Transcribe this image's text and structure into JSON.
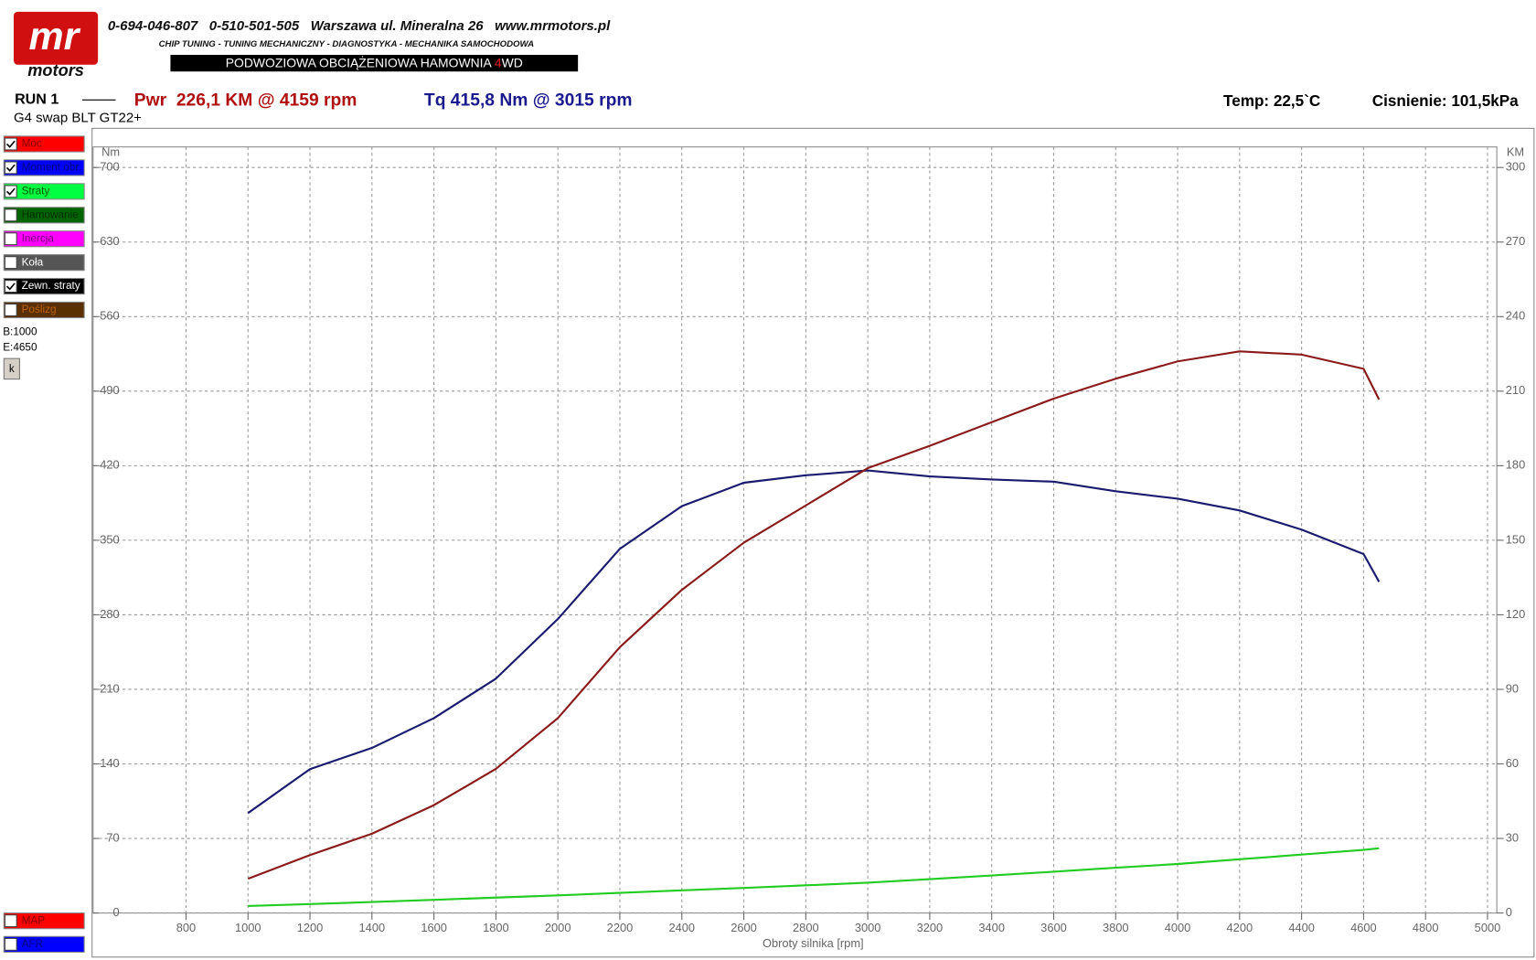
{
  "header": {
    "logo_top": "mr",
    "logo_bottom": "motors",
    "contact": "0-694-046-807   0-510-501-505   Warszawa ul. Mineralna 26   www.mrmotors.pl",
    "services": "CHIP TUNING - TUNING MECHANICZNY - DIAGNOSTYKA - MECHANIKA SAMOCHODOWA",
    "banner": [
      "PODWOZIOWA OBCIĄŻENIOWA HAMOWNIA ",
      "4",
      "WD"
    ]
  },
  "run": {
    "name": "RUN 1",
    "power": "Pwr  226,1 KM @ 4159 rpm",
    "torque": "Tq 415,8 Nm @ 3015 rpm",
    "temp": "Temp: 22,5`C",
    "pressure": "Cisnienie: 101,5kPa",
    "car": "G4 swap BLT GT22+"
  },
  "panel": {
    "items": [
      {
        "label": "Moc",
        "color": "#ff0000",
        "text_color": "#8b0000",
        "checked": true
      },
      {
        "label": "Moment obr.",
        "color": "#0000ff",
        "text_color": "#000080",
        "checked": true
      },
      {
        "label": "Straty",
        "color": "#00ff40",
        "text_color": "#006000",
        "checked": true
      },
      {
        "label": "Hamowanie",
        "color": "#006400",
        "text_color": "#003000",
        "checked": false
      },
      {
        "label": "Inercja",
        "color": "#ff00ff",
        "text_color": "#800080",
        "checked": false
      },
      {
        "label": "Koła",
        "color": "#555555",
        "text_color": "#ffffff",
        "checked": false
      },
      {
        "label": "Zewn. straty",
        "color": "#000000",
        "text_color": "#ffffff",
        "checked": true
      },
      {
        "label": "Poślizg",
        "color": "#5a3000",
        "text_color": "#c06000",
        "checked": false
      }
    ],
    "begin": "B:1000",
    "end": "E:4650",
    "button": "k",
    "bottom_items": [
      {
        "label": "MAP",
        "color": "#ff0000",
        "text_color": "#8b0000",
        "checked": false
      },
      {
        "label": "AFR",
        "color": "#0000ff",
        "text_color": "#000080",
        "checked": false
      }
    ]
  },
  "chart_data": {
    "type": "line",
    "y_label": "Nm",
    "y2_label": "KM",
    "x_label": "Obroty silnika [rpm]",
    "x": [
      1000,
      1200,
      1400,
      1600,
      1800,
      2000,
      2200,
      2400,
      2600,
      2800,
      3000,
      3200,
      3400,
      3600,
      3800,
      4000,
      4200,
      4400,
      4600,
      4650
    ],
    "series": [
      {
        "name": "Moment obr.",
        "color": "#1a1a6e",
        "values": [
          93.8,
          135,
          155,
          183,
          220,
          276,
          342,
          382,
          404,
          411,
          415.5,
          410,
          407,
          405,
          396,
          389,
          378,
          360,
          337,
          311
        ]
      },
      {
        "name": "Moc",
        "color": "#8b1a1a",
        "axis": "y2",
        "values": [
          13.8,
          23.3,
          31.9,
          43.4,
          58,
          78.4,
          107,
          130,
          149,
          164,
          179,
          188,
          197.5,
          207,
          215,
          222,
          226,
          224.7,
          219,
          206.6
        ]
      },
      {
        "name": "Straty",
        "color": "#22cc22",
        "axis": "y2",
        "values": [
          2.8,
          3.6,
          4.4,
          5.3,
          6.2,
          7.1,
          8.1,
          9.1,
          10.1,
          11.1,
          12.2,
          13.6,
          15.1,
          16.6,
          18.2,
          19.7,
          21.6,
          23.5,
          25.4,
          26
        ]
      }
    ],
    "xlim": [
      500,
      5030
    ],
    "xticks": [
      800,
      1000,
      1200,
      1400,
      1600,
      1800,
      2000,
      2200,
      2400,
      2600,
      2800,
      3000,
      3200,
      3400,
      3600,
      3800,
      4000,
      4200,
      4400,
      4600,
      4800,
      5000
    ],
    "ylim": [
      0,
      700
    ],
    "yticks": [
      0,
      70,
      140,
      210,
      280,
      350,
      420,
      490,
      560,
      630,
      700
    ],
    "y2lim": [
      0,
      300
    ],
    "y2ticks": [
      0,
      30,
      60,
      90,
      120,
      150,
      180,
      210,
      240,
      270,
      300
    ],
    "grid": true
  }
}
